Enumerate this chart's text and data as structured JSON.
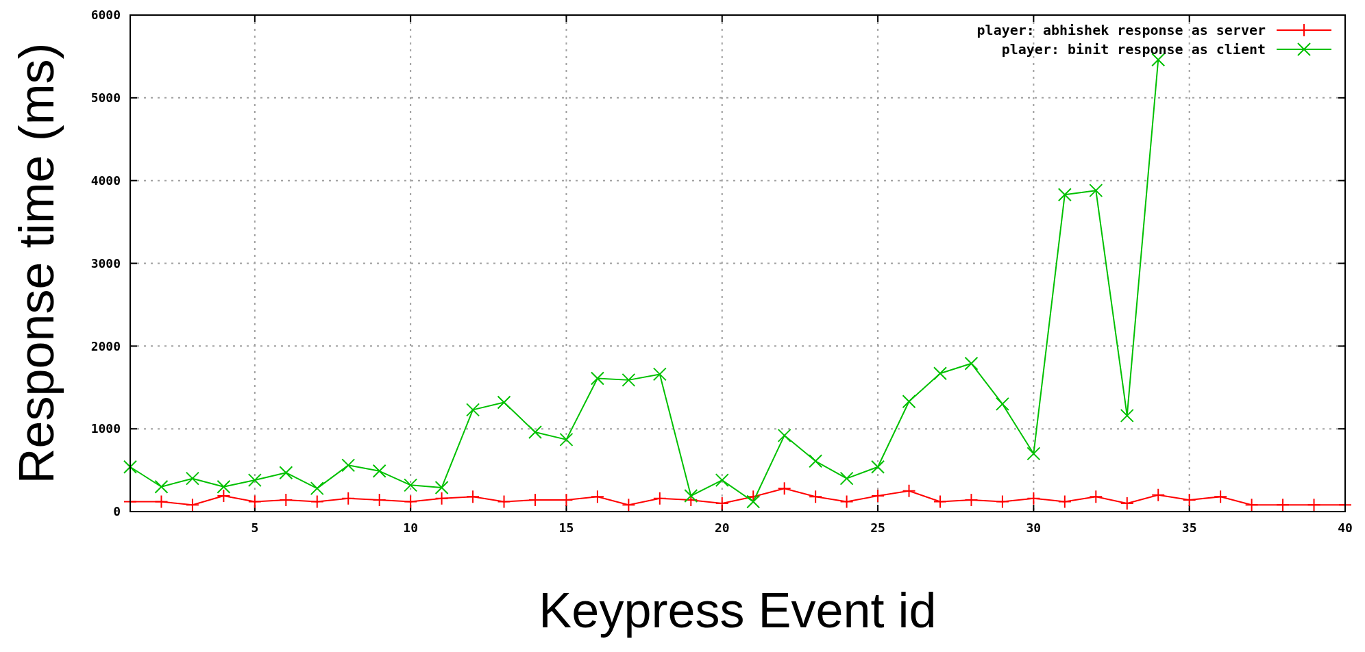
{
  "chart_data": {
    "type": "line",
    "xlabel": "Keypress Event id",
    "ylabel": "Response time (ms)",
    "xlim": [
      1,
      40
    ],
    "xticks": [
      5,
      10,
      15,
      20,
      25,
      30,
      35,
      40
    ],
    "ylim": [
      0,
      6000
    ],
    "yticks": [
      0,
      1000,
      2000,
      3000,
      4000,
      5000,
      6000
    ],
    "grid": true,
    "legend": "top right",
    "series": [
      {
        "name": "player: abhishek response as server",
        "color": "#ff0000",
        "marker": "cross",
        "x": [
          1,
          2,
          3,
          4,
          5,
          6,
          7,
          8,
          9,
          10,
          11,
          12,
          13,
          14,
          15,
          16,
          17,
          18,
          19,
          20,
          21,
          22,
          23,
          24,
          25,
          26,
          27,
          28,
          29,
          30,
          31,
          32,
          33,
          34,
          35,
          36,
          37,
          38,
          39,
          40
        ],
        "values": [
          120,
          120,
          80,
          190,
          120,
          140,
          120,
          160,
          140,
          120,
          160,
          180,
          120,
          140,
          140,
          180,
          80,
          160,
          140,
          100,
          180,
          280,
          180,
          120,
          190,
          250,
          120,
          140,
          120,
          160,
          120,
          180,
          100,
          200,
          140,
          180,
          80,
          80,
          80,
          80
        ]
      },
      {
        "name": "player: binit response as client",
        "color": "#00c000",
        "marker": "x",
        "x": [
          1,
          2,
          3,
          4,
          5,
          6,
          7,
          8,
          9,
          10,
          11,
          12,
          13,
          14,
          15,
          16,
          17,
          18,
          19,
          20,
          21,
          22,
          23,
          24,
          25,
          26,
          27,
          28,
          29,
          30,
          31,
          32,
          33,
          34
        ],
        "values": [
          540,
          300,
          400,
          300,
          380,
          470,
          280,
          560,
          490,
          320,
          290,
          1230,
          1320,
          960,
          870,
          1610,
          1590,
          1660,
          190,
          380,
          120,
          920,
          610,
          400,
          540,
          1330,
          1670,
          1790,
          1300,
          700,
          3830,
          3880,
          1160,
          5460
        ]
      }
    ]
  }
}
